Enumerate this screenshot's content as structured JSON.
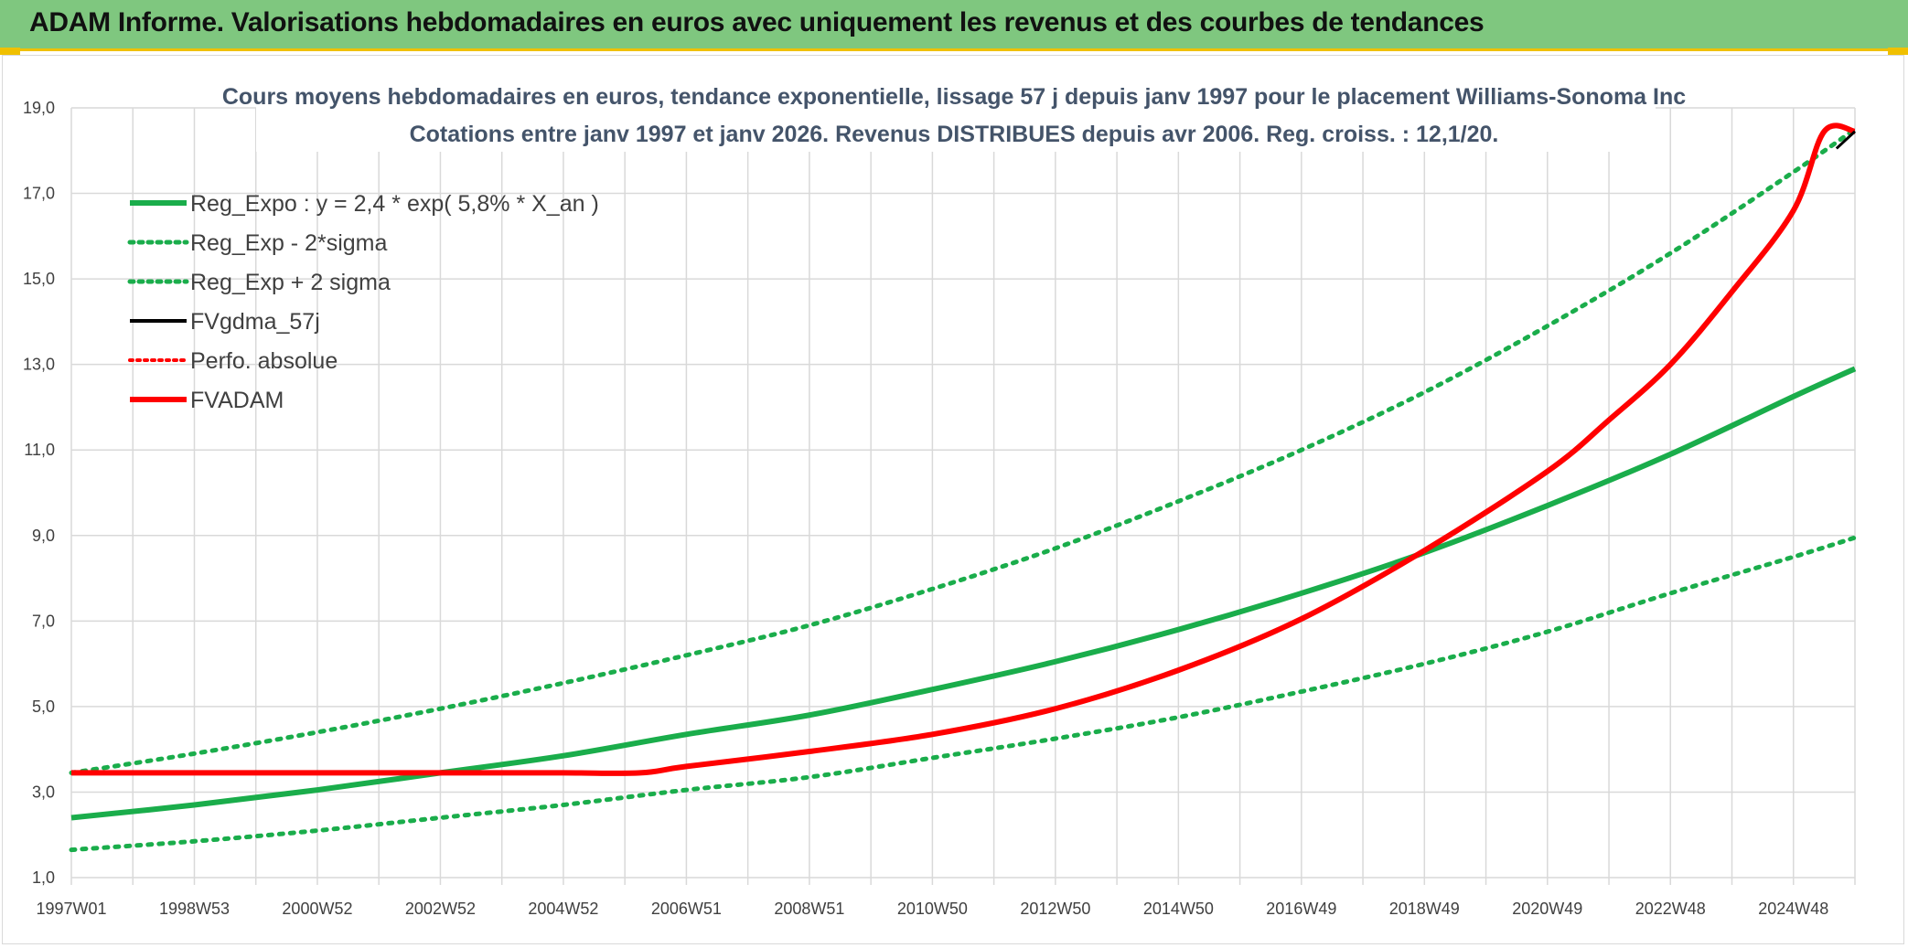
{
  "banner": {
    "title": "ADAM Informe. Valorisations hebdomadaires en euros avec uniquement les revenus et des courbes de tendances"
  },
  "colors": {
    "banner_bg": "#7fc77f",
    "accent": "#f0c000",
    "green": "#1aad4b",
    "red": "#ff0000",
    "black": "#000000",
    "grid": "#d9d9d9"
  },
  "chart_data": {
    "type": "line",
    "title_line1": "Cours moyens hebdomadaires en euros, tendance exponentielle, lissage 57 j depuis janv 1997 pour le placement Williams-Sonoma Inc",
    "title_line2": "Cotations entre janv 1997 et janv 2026. Revenus DISTRIBUES depuis avr 2006. Reg. croiss. : 12,1/20.",
    "xlabel": "",
    "ylabel": "",
    "x_range": [
      1997.0,
      2026.0
    ],
    "ylim": [
      1.0,
      19.0
    ],
    "y_ticks": [
      "1,0",
      "3,0",
      "5,0",
      "7,0",
      "9,0",
      "11,0",
      "13,0",
      "15,0",
      "17,0",
      "19,0"
    ],
    "y_tick_values": [
      1,
      3,
      5,
      7,
      9,
      11,
      13,
      15,
      17,
      19
    ],
    "x_ticks": [
      "1997W01",
      "1998W53",
      "2000W52",
      "2002W52",
      "2004W52",
      "2006W51",
      "2008W51",
      "2010W50",
      "2012W50",
      "2014W50",
      "2016W49",
      "2018W49",
      "2020W49",
      "2022W48",
      "2024W48"
    ],
    "x_tick_values": [
      1997.0,
      1999.0,
      2001.0,
      2003.0,
      2005.0,
      2007.0,
      2009.0,
      2011.0,
      2013.0,
      2015.0,
      2017.0,
      2019.0,
      2021.0,
      2023.0,
      2025.0
    ],
    "grid": true,
    "legend_position": "top-left",
    "series": [
      {
        "name": "Reg_Expo : y = 2,4 * exp( 5,8% *  X_an )",
        "style": "solid",
        "color": "#1aad4b",
        "x": [
          1997,
          1999,
          2001,
          2003,
          2005,
          2007,
          2009,
          2011,
          2013,
          2015,
          2017,
          2019,
          2021,
          2023,
          2025,
          2026
        ],
        "y": [
          2.4,
          2.7,
          3.05,
          3.45,
          3.85,
          4.35,
          4.8,
          5.4,
          6.05,
          6.8,
          7.65,
          8.6,
          9.7,
          10.9,
          12.25,
          12.9
        ]
      },
      {
        "name": "Reg_Exp - 2*sigma",
        "style": "dotted",
        "color": "#1aad4b",
        "x": [
          1997,
          1999,
          2001,
          2003,
          2005,
          2007,
          2009,
          2011,
          2013,
          2015,
          2017,
          2019,
          2021,
          2023,
          2025,
          2026
        ],
        "y": [
          1.65,
          1.85,
          2.1,
          2.4,
          2.7,
          3.05,
          3.35,
          3.8,
          4.25,
          4.75,
          5.35,
          6.0,
          6.75,
          7.65,
          8.5,
          8.95
        ]
      },
      {
        "name": "Reg_Exp + 2 sigma",
        "style": "dotted",
        "color": "#1aad4b",
        "x": [
          1997,
          1999,
          2001,
          2003,
          2005,
          2007,
          2009,
          2011,
          2013,
          2015,
          2017,
          2019,
          2021,
          2023,
          2025,
          2026
        ],
        "y": [
          3.45,
          3.9,
          4.4,
          4.95,
          5.55,
          6.2,
          6.9,
          7.75,
          8.7,
          9.8,
          11.0,
          12.35,
          13.9,
          15.6,
          17.5,
          18.5
        ]
      },
      {
        "name": "FVgdma_57j",
        "style": "solid",
        "color": "#000000",
        "x": [
          2025.7,
          2026.0
        ],
        "y": [
          18.05,
          18.45
        ]
      },
      {
        "name": "Perfo. absolue",
        "style": "dotted",
        "color": "#ff0000",
        "x": [],
        "y": []
      },
      {
        "name": "FVADAM",
        "style": "solid",
        "color": "#ff0000",
        "x": [
          1997,
          1999,
          2001,
          2003,
          2005,
          2006.25,
          2007,
          2009,
          2011,
          2013,
          2015,
          2017,
          2019,
          2021,
          2022,
          2023,
          2024,
          2025,
          2025.5,
          2026
        ],
        "y": [
          3.45,
          3.45,
          3.45,
          3.45,
          3.45,
          3.45,
          3.6,
          3.95,
          4.35,
          4.95,
          5.85,
          7.05,
          8.65,
          10.5,
          11.7,
          13.0,
          14.7,
          16.6,
          18.45,
          18.45
        ]
      }
    ]
  }
}
